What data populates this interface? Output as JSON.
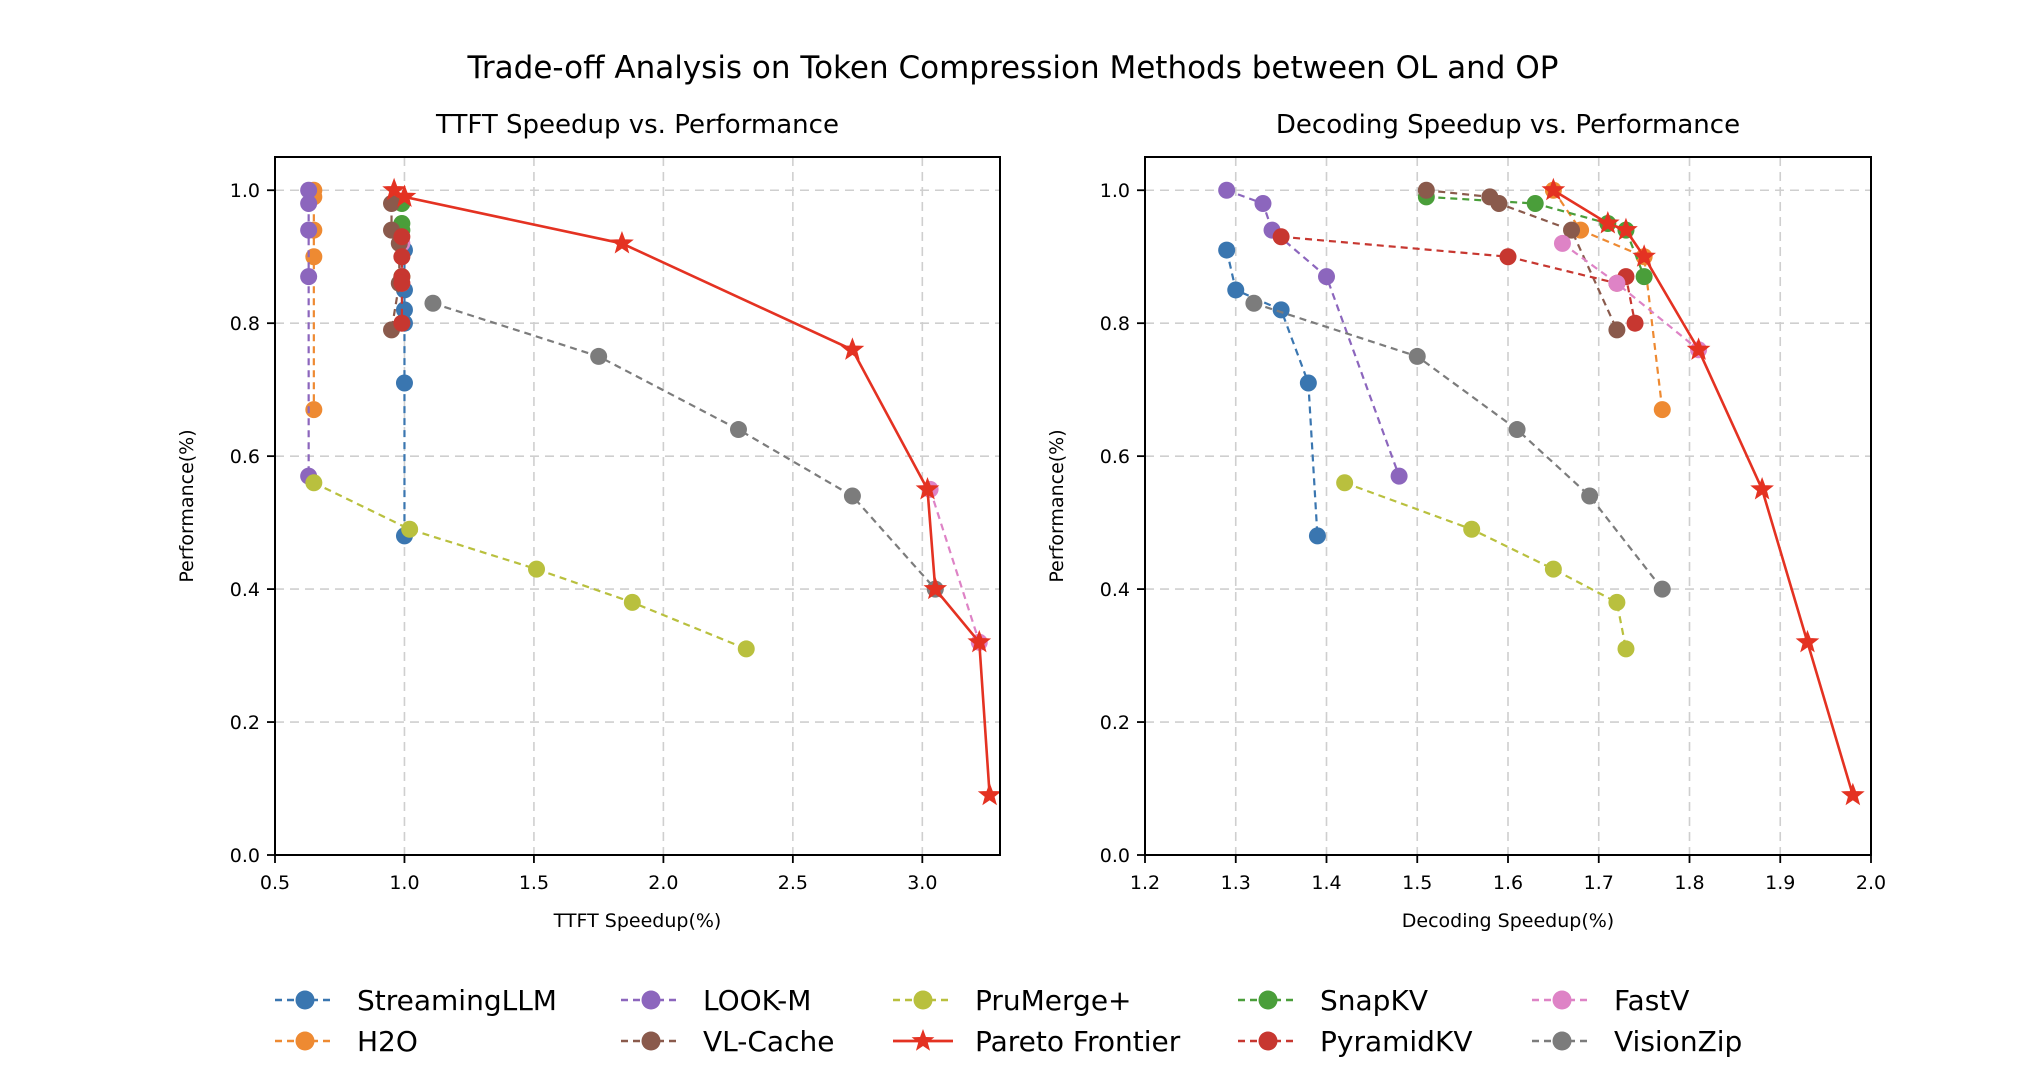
{
  "chart_data": {
    "type": "scatter",
    "title": "Trade-off Analysis on Token Compression Methods between OL and OP",
    "legend": {
      "placement": "bottom-center",
      "entries": [
        {
          "name": "StreamingLLM",
          "color": "#3a76b0",
          "marker": "circle",
          "dashed": true
        },
        {
          "name": "LOOK-M",
          "color": "#8c66bd",
          "marker": "circle",
          "dashed": true
        },
        {
          "name": "PruMerge+",
          "color": "#b9c03e",
          "marker": "circle",
          "dashed": true
        },
        {
          "name": "SnapKV",
          "color": "#4a9e3a",
          "marker": "circle",
          "dashed": true
        },
        {
          "name": "FastV",
          "color": "#de83c6",
          "marker": "circle",
          "dashed": true
        },
        {
          "name": "H2O",
          "color": "#ee8a32",
          "marker": "circle",
          "dashed": true
        },
        {
          "name": "VL-Cache",
          "color": "#8a5a4c",
          "marker": "circle",
          "dashed": true
        },
        {
          "name": "Pareto Frontier",
          "color": "#e43222",
          "marker": "star",
          "dashed": false
        },
        {
          "name": "PyramidKV",
          "color": "#c73730",
          "marker": "circle",
          "dashed": true
        },
        {
          "name": "VisionZip",
          "color": "#7c7c7c",
          "marker": "circle",
          "dashed": true
        }
      ]
    },
    "panels": [
      {
        "title": "TTFT Speedup vs. Performance",
        "xlabel": "TTFT Speedup(%)",
        "ylabel": "Performance(%)",
        "xlim": [
          0.5,
          3.3
        ],
        "ylim": [
          0.0,
          1.05
        ],
        "xticks": [
          0.5,
          1.0,
          1.5,
          2.0,
          2.5,
          3.0
        ],
        "xtick_labels": [
          "0.5",
          "1.0",
          "1.5",
          "2.0",
          "2.5",
          "3.0"
        ],
        "yticks": [
          0.0,
          0.2,
          0.4,
          0.6,
          0.8,
          1.0
        ],
        "ytick_labels": [
          "0.0",
          "0.2",
          "0.4",
          "0.6",
          "0.8",
          "1.0"
        ],
        "grid": true,
        "series": [
          {
            "name": "H2O",
            "x": [
              0.65,
              0.65,
              0.65,
              0.65,
              0.65
            ],
            "y": [
              1.0,
              0.99,
              0.94,
              0.9,
              0.67
            ]
          },
          {
            "name": "LOOK-M",
            "x": [
              0.63,
              0.63,
              0.63,
              0.63,
              0.63
            ],
            "y": [
              1.0,
              0.98,
              0.94,
              0.87,
              0.57
            ]
          },
          {
            "name": "StreamingLLM",
            "x": [
              1.0,
              1.0,
              1.0,
              1.0,
              1.0,
              1.0
            ],
            "y": [
              0.91,
              0.85,
              0.82,
              0.8,
              0.71,
              0.48
            ]
          },
          {
            "name": "SnapKV",
            "x": [
              0.99,
              0.99,
              0.99,
              0.99
            ],
            "y": [
              0.98,
              0.95,
              0.94,
              0.87
            ]
          },
          {
            "name": "FastV",
            "x": [
              0.99,
              0.99
            ],
            "y": [
              0.92,
              0.86
            ]
          },
          {
            "name": "VL-Cache",
            "x": [
              0.95,
              0.95,
              0.98,
              0.98,
              0.95
            ],
            "y": [
              0.98,
              0.94,
              0.92,
              0.86,
              0.79
            ]
          },
          {
            "name": "PyramidKV",
            "x": [
              0.99,
              0.99,
              0.99,
              0.99,
              0.99
            ],
            "y": [
              0.93,
              0.9,
              0.87,
              0.86,
              0.8
            ]
          },
          {
            "name": "VisionZip",
            "x": [
              1.11,
              1.75,
              2.29,
              2.73,
              3.05
            ],
            "y": [
              0.83,
              0.75,
              0.64,
              0.54,
              0.4
            ]
          },
          {
            "name": "PruMerge+",
            "x": [
              0.65,
              1.02,
              1.51,
              1.88,
              2.32
            ],
            "y": [
              0.56,
              0.49,
              0.43,
              0.38,
              0.31
            ]
          },
          {
            "name": "FastV",
            "x": [
              3.03,
              3.22
            ],
            "y": [
              0.55,
              0.32
            ]
          },
          {
            "name": "Pareto Frontier",
            "x": [
              0.96,
              1.0,
              1.84,
              2.73,
              3.02,
              3.05,
              3.22,
              3.26
            ],
            "y": [
              1.0,
              0.99,
              0.92,
              0.76,
              0.55,
              0.4,
              0.32,
              0.09
            ]
          }
        ]
      },
      {
        "title": "Decoding Speedup vs. Performance",
        "xlabel": "Decoding Speedup(%)",
        "ylabel": "Performance(%)",
        "xlim": [
          1.2,
          2.0
        ],
        "ylim": [
          0.0,
          1.05
        ],
        "xticks": [
          1.2,
          1.3,
          1.4,
          1.5,
          1.6,
          1.7,
          1.8,
          1.9,
          2.0
        ],
        "xtick_labels": [
          "1.2",
          "1.3",
          "1.4",
          "1.5",
          "1.6",
          "1.7",
          "1.8",
          "1.9",
          "2.0"
        ],
        "yticks": [
          0.0,
          0.2,
          0.4,
          0.6,
          0.8,
          1.0
        ],
        "ytick_labels": [
          "0.0",
          "0.2",
          "0.4",
          "0.6",
          "0.8",
          "1.0"
        ],
        "grid": true,
        "series": [
          {
            "name": "StreamingLLM",
            "x": [
              1.29,
              1.3,
              1.35,
              1.38,
              1.39
            ],
            "y": [
              0.91,
              0.85,
              0.82,
              0.71,
              0.48
            ]
          },
          {
            "name": "LOOK-M",
            "x": [
              1.29,
              1.33,
              1.34,
              1.4,
              1.48
            ],
            "y": [
              1.0,
              0.98,
              0.94,
              0.87,
              0.57
            ]
          },
          {
            "name": "PruMerge+",
            "x": [
              1.42,
              1.56,
              1.65,
              1.72,
              1.73
            ],
            "y": [
              0.56,
              0.49,
              0.43,
              0.38,
              0.31
            ]
          },
          {
            "name": "VisionZip",
            "x": [
              1.32,
              1.5,
              1.61,
              1.69,
              1.77
            ],
            "y": [
              0.83,
              0.75,
              0.64,
              0.54,
              0.4
            ]
          },
          {
            "name": "H2O",
            "x": [
              1.65,
              1.68,
              1.75,
              1.77
            ],
            "y": [
              1.0,
              0.94,
              0.9,
              0.67
            ]
          },
          {
            "name": "SnapKV",
            "x": [
              1.51,
              1.63,
              1.71,
              1.73,
              1.75
            ],
            "y": [
              0.99,
              0.98,
              0.95,
              0.94,
              0.87
            ]
          },
          {
            "name": "VL-Cache",
            "x": [
              1.51,
              1.58,
              1.59,
              1.67,
              1.72
            ],
            "y": [
              1.0,
              0.99,
              0.98,
              0.94,
              0.79
            ]
          },
          {
            "name": "PyramidKV",
            "x": [
              1.35,
              1.6,
              1.72,
              1.73,
              1.74
            ],
            "y": [
              0.93,
              0.9,
              0.86,
              0.87,
              0.8
            ]
          },
          {
            "name": "FastV",
            "x": [
              1.66,
              1.72,
              1.81
            ],
            "y": [
              0.92,
              0.86,
              0.76
            ]
          },
          {
            "name": "Pareto Frontier",
            "x": [
              1.65,
              1.71,
              1.73,
              1.75,
              1.81,
              1.88,
              1.93,
              1.98
            ],
            "y": [
              1.0,
              0.95,
              0.94,
              0.9,
              0.76,
              0.55,
              0.32,
              0.09
            ]
          }
        ]
      }
    ]
  }
}
